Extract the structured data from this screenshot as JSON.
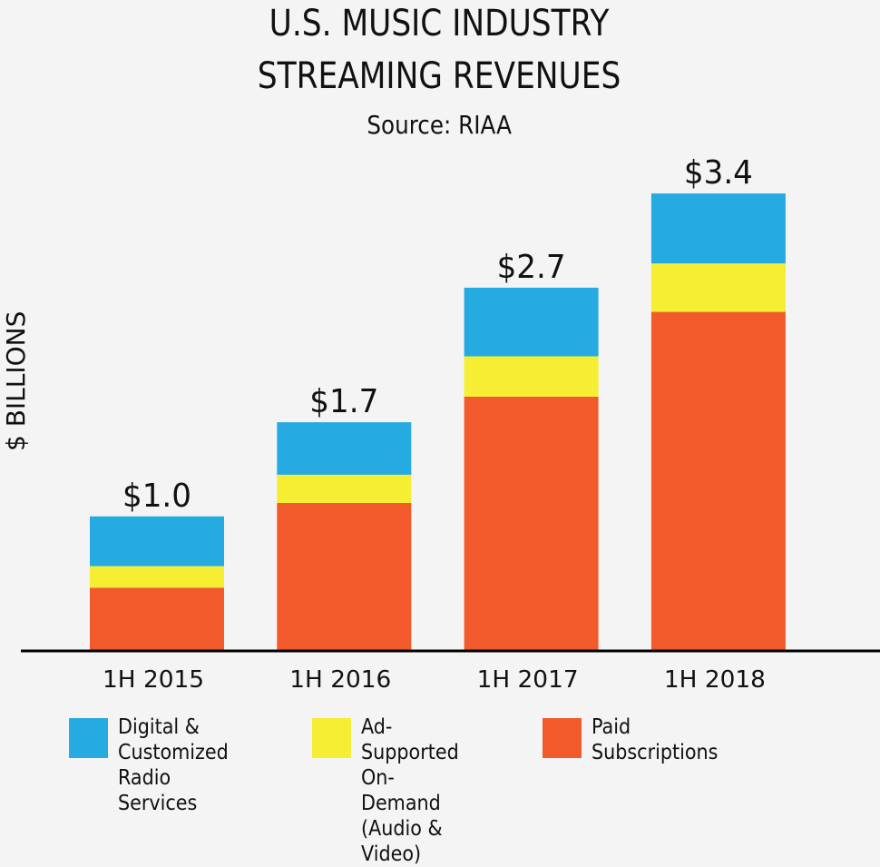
{
  "chart_data": {
    "type": "bar",
    "stacked": true,
    "title": [
      "U.S. MUSIC INDUSTRY",
      "STREAMING REVENUES"
    ],
    "subtitle": "Source: RIAA",
    "ylabel": "$ BILLIONS",
    "xlabel": "",
    "ylim": [
      0,
      3.4
    ],
    "grid": false,
    "legend_position": "bottom",
    "categories": [
      "1H 2015",
      "1H 2016",
      "1H 2017",
      "1H 2018"
    ],
    "totals_labels": [
      "$1.0",
      "$1.7",
      "$2.7",
      "$3.4"
    ],
    "totals": [
      1.0,
      1.7,
      2.7,
      3.4
    ],
    "series": [
      {
        "name": "Paid Subscriptions",
        "color": "#f25a2b",
        "values": [
          0.47,
          1.1,
          1.89,
          2.52
        ]
      },
      {
        "name": "Ad-Supported On-Demand (Audio & Video)",
        "color": "#f5ee33",
        "values": [
          0.16,
          0.21,
          0.3,
          0.36
        ]
      },
      {
        "name": "Digital & Customized Radio Services",
        "color": "#26aae2",
        "values": [
          0.38,
          0.4,
          0.46,
          0.52
        ]
      }
    ]
  },
  "legend": [
    {
      "label": "Digital &\nCustomized\nRadio Services",
      "color": "#26aae2"
    },
    {
      "label": "Ad-Supported\nOn-Demand\n(Audio & Video)",
      "color": "#f5ee33"
    },
    {
      "label": "Paid Subscriptions",
      "color": "#f25a2b"
    }
  ]
}
